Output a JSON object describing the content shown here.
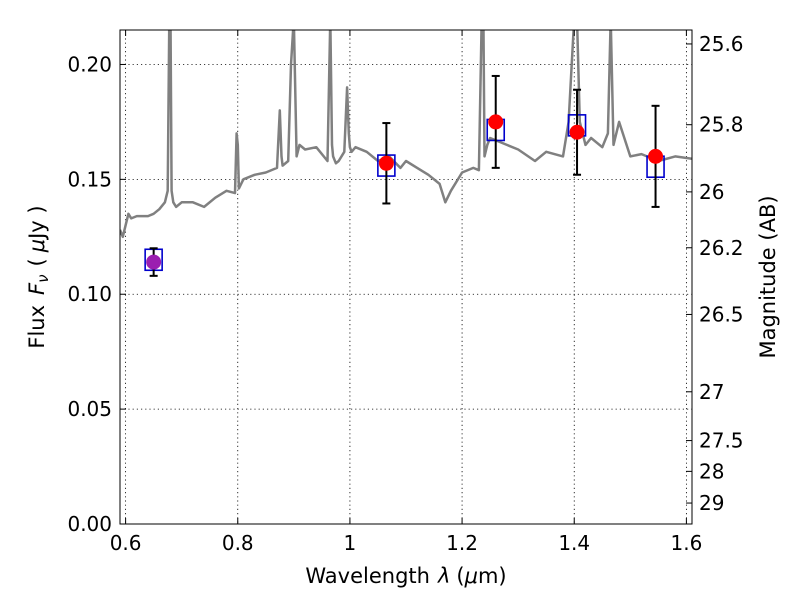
{
  "chart_data": {
    "type": "scatter",
    "xlabel": "Wavelength",
    "xlabel_symbol": "λ",
    "xlabel_unit_open": "(",
    "xlabel_unit_mu": "μ",
    "xlabel_unit_rest": "m)",
    "ylabel_prefix": "Flux",
    "ylabel_symbol": "F",
    "ylabel_subscript": "ν",
    "ylabel_unit_open": "(",
    "ylabel_unit_mu": "μ",
    "ylabel_unit_rest": "Jy )",
    "y2label": "Magnitude (AB)",
    "xlim": [
      0.59,
      1.61
    ],
    "ylim": [
      0.0,
      0.215
    ],
    "grid": true,
    "xticks": [
      {
        "v": 0.6,
        "label": "0.6"
      },
      {
        "v": 0.8,
        "label": "0.8"
      },
      {
        "v": 1.0,
        "label": "1"
      },
      {
        "v": 1.2,
        "label": "1.2"
      },
      {
        "v": 1.4,
        "label": "1.4"
      },
      {
        "v": 1.6,
        "label": "1.6"
      }
    ],
    "yticks": [
      {
        "v": 0.0,
        "label": "0.00"
      },
      {
        "v": 0.05,
        "label": "0.05"
      },
      {
        "v": 0.1,
        "label": "0.10"
      },
      {
        "v": 0.15,
        "label": "0.15"
      },
      {
        "v": 0.2,
        "label": "0.20"
      }
    ],
    "magticks": [
      {
        "mag": 25.6,
        "label": "25.6"
      },
      {
        "mag": 25.8,
        "label": "25.8"
      },
      {
        "mag": 26.0,
        "label": "26"
      },
      {
        "mag": 26.2,
        "label": "26.2"
      },
      {
        "mag": 26.5,
        "label": "26.5"
      },
      {
        "mag": 27.0,
        "label": "27"
      },
      {
        "mag": 27.5,
        "label": "27.5"
      },
      {
        "mag": 28.0,
        "label": "28"
      },
      {
        "mag": 29.0,
        "label": "29"
      }
    ],
    "observed": [
      {
        "x": 0.65,
        "y": 0.114,
        "err": 0.006,
        "color": "#9b1fb0"
      },
      {
        "x": 1.065,
        "y": 0.157,
        "err": 0.0175,
        "color": "#ff0000"
      },
      {
        "x": 1.26,
        "y": 0.175,
        "err": 0.02,
        "color": "#ff0000"
      },
      {
        "x": 1.405,
        "y": 0.1705,
        "err": 0.0185,
        "color": "#ff0000"
      },
      {
        "x": 1.545,
        "y": 0.16,
        "err": 0.022,
        "color": "#ff0000"
      }
    ],
    "model_points": [
      {
        "x": 0.65,
        "y": 0.115
      },
      {
        "x": 1.065,
        "y": 0.156
      },
      {
        "x": 1.26,
        "y": 0.1715
      },
      {
        "x": 1.405,
        "y": 0.1735
      },
      {
        "x": 1.545,
        "y": 0.1555
      }
    ],
    "model_spectrum": {
      "color": "#808080",
      "x": [
        0.59,
        0.595,
        0.6,
        0.605,
        0.61,
        0.62,
        0.63,
        0.64,
        0.65,
        0.66,
        0.67,
        0.675,
        0.678,
        0.68,
        0.682,
        0.685,
        0.69,
        0.7,
        0.72,
        0.74,
        0.76,
        0.78,
        0.795,
        0.798,
        0.8,
        0.802,
        0.81,
        0.83,
        0.85,
        0.87,
        0.875,
        0.878,
        0.88,
        0.89,
        0.895,
        0.9,
        0.905,
        0.91,
        0.92,
        0.94,
        0.96,
        0.965,
        0.968,
        0.97,
        0.975,
        0.98,
        0.99,
        0.995,
        0.998,
        1.0,
        1.003,
        1.01,
        1.03,
        1.05,
        1.07,
        1.09,
        1.1,
        1.12,
        1.14,
        1.16,
        1.17,
        1.18,
        1.2,
        1.22,
        1.23,
        1.235,
        1.238,
        1.24,
        1.245,
        1.25,
        1.28,
        1.3,
        1.33,
        1.35,
        1.38,
        1.39,
        1.4,
        1.405,
        1.41,
        1.42,
        1.43,
        1.45,
        1.46,
        1.465,
        1.47,
        1.48,
        1.5,
        1.52,
        1.55,
        1.58,
        1.61
      ],
      "y": [
        0.128,
        0.125,
        0.13,
        0.135,
        0.133,
        0.134,
        0.134,
        0.134,
        0.135,
        0.137,
        0.14,
        0.145,
        0.22,
        0.22,
        0.145,
        0.14,
        0.138,
        0.14,
        0.14,
        0.138,
        0.142,
        0.145,
        0.144,
        0.17,
        0.165,
        0.146,
        0.15,
        0.152,
        0.153,
        0.155,
        0.18,
        0.16,
        0.156,
        0.158,
        0.2,
        0.22,
        0.16,
        0.165,
        0.163,
        0.164,
        0.158,
        0.22,
        0.165,
        0.16,
        0.157,
        0.158,
        0.162,
        0.19,
        0.17,
        0.164,
        0.162,
        0.164,
        0.162,
        0.158,
        0.16,
        0.155,
        0.158,
        0.155,
        0.152,
        0.148,
        0.14,
        0.145,
        0.153,
        0.155,
        0.154,
        0.22,
        0.22,
        0.16,
        0.165,
        0.168,
        0.165,
        0.163,
        0.158,
        0.162,
        0.16,
        0.175,
        0.22,
        0.22,
        0.175,
        0.165,
        0.168,
        0.164,
        0.17,
        0.22,
        0.165,
        0.175,
        0.16,
        0.161,
        0.158,
        0.16,
        0.159
      ]
    }
  }
}
